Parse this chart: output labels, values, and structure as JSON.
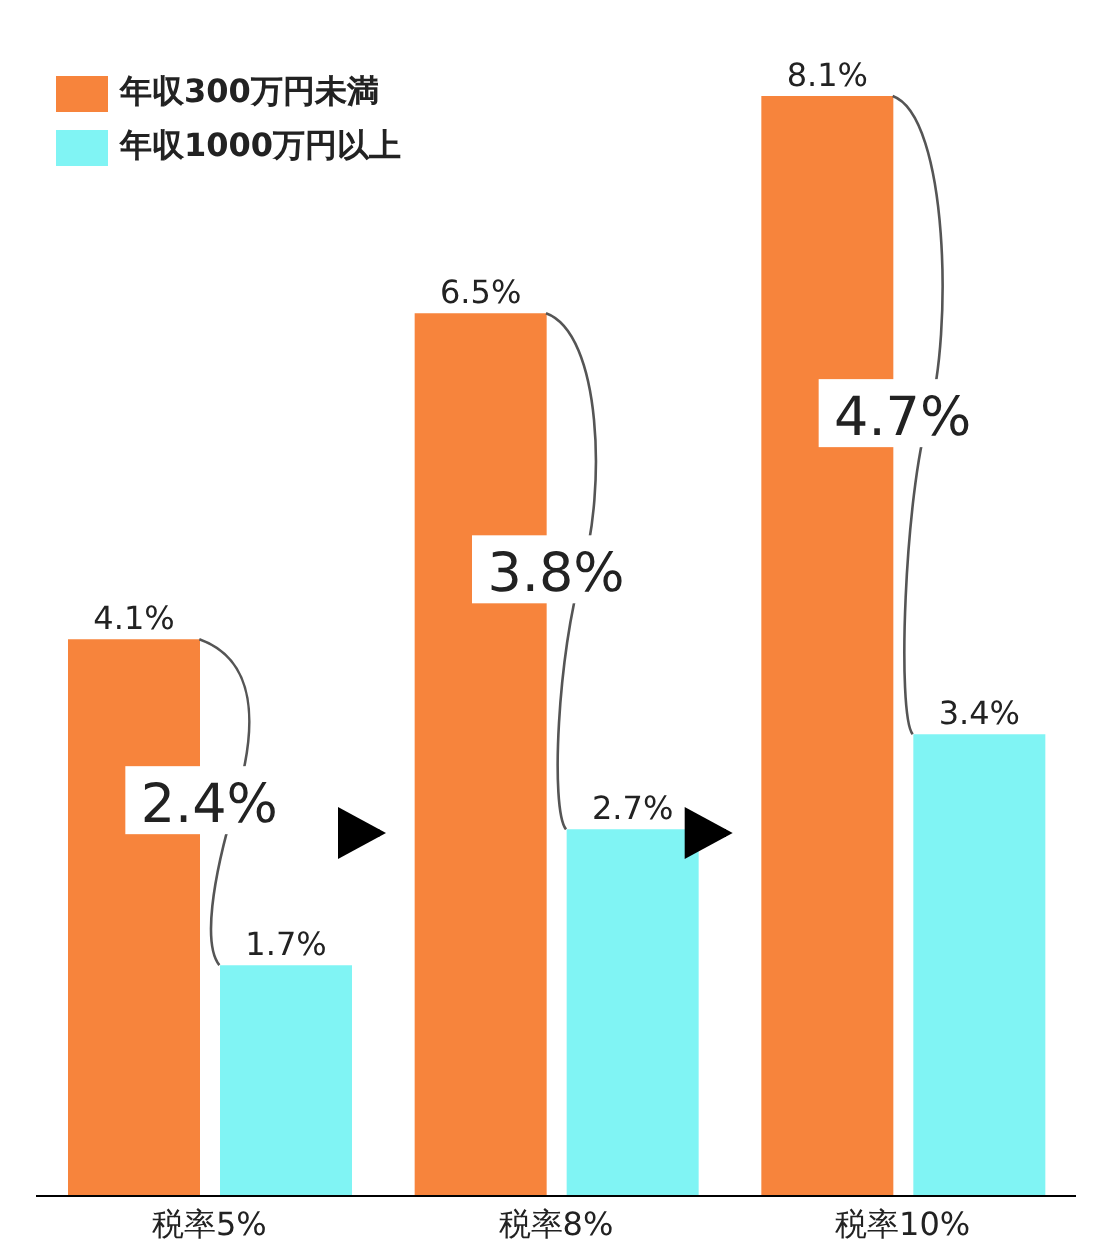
{
  "chart_data": {
    "type": "bar",
    "categories": [
      "税率5%",
      "税率8%",
      "税率10%"
    ],
    "series": [
      {
        "name": "年収300万円未満",
        "color": "#f7843c",
        "values": [
          4.1,
          6.5,
          8.1
        ],
        "value_labels": [
          "4.1%",
          "6.5%",
          "8.1%"
        ]
      },
      {
        "name": "年収1000万円以上",
        "color": "#80f4f4",
        "values": [
          1.7,
          2.7,
          3.4
        ],
        "value_labels": [
          "1.7%",
          "2.7%",
          "3.4%"
        ]
      }
    ],
    "annotations": [
      "2.4%",
      "3.8%",
      "4.7%"
    ],
    "legend": "top left"
  }
}
